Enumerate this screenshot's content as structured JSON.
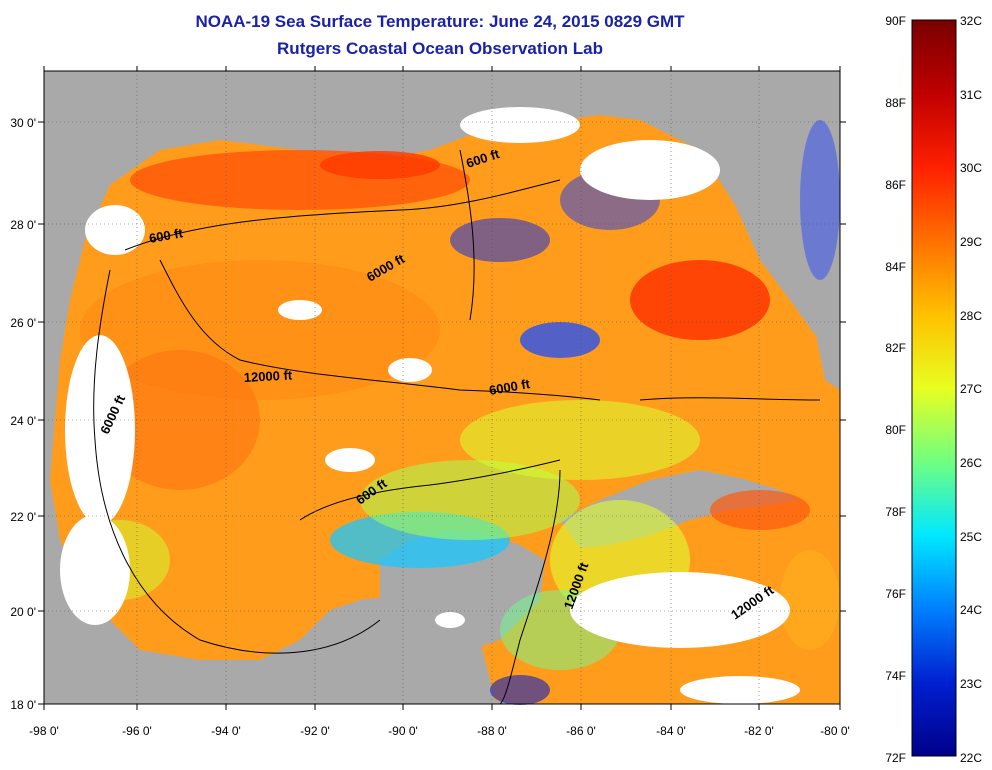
{
  "header": {
    "title": "NOAA-19 Sea Surface Temperature:  June 24, 2015 0829 GMT",
    "subtitle": "Rutgers Coastal Ocean Observation Lab"
  },
  "map": {
    "lon_ticks": [
      "-98 0'",
      "-96 0'",
      "-94 0'",
      "-92 0'",
      "-90 0'",
      "-88 0'",
      "-86 0'",
      "-84 0'",
      "-82 0'",
      "-80 0'"
    ],
    "lat_ticks": [
      "30 0'",
      "28 0'",
      "26 0'",
      "24 0'",
      "22 0'",
      "20 0'",
      "18 0'"
    ],
    "contour_labels": [
      "600 ft",
      "600 ft",
      "600 ft",
      "6000 ft",
      "6000 ft",
      "6000 ft",
      "12000 ft",
      "12000 ft",
      "12000 ft"
    ],
    "land_color": "#a9a9a9",
    "cloud_color": "#ffffff"
  },
  "colorbar": {
    "fahrenheit": [
      "90F",
      "88F",
      "86F",
      "84F",
      "82F",
      "80F",
      "78F",
      "76F",
      "74F",
      "72F"
    ],
    "celsius": [
      "32C",
      "31C",
      "30C",
      "29C",
      "28C",
      "27C",
      "26C",
      "25C",
      "24C",
      "23C",
      "22C"
    ],
    "colors": [
      "#7a0000",
      "#c00000",
      "#ff2000",
      "#ff7000",
      "#ffc000",
      "#e8ff20",
      "#70ff80",
      "#00e8ff",
      "#0080ff",
      "#0020d0",
      "#00008a"
    ]
  }
}
